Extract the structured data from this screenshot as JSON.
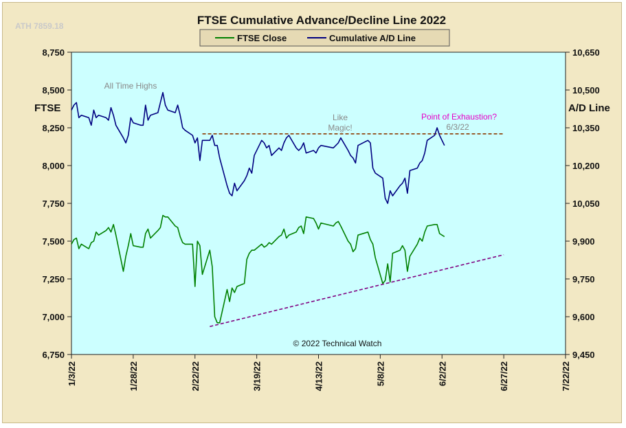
{
  "chart_data": {
    "type": "line",
    "title": "FTSE Cumulative  Advance/Decline  Line  2022",
    "corner_note": "ATH 7859.18",
    "copyright": "© 2022 Technical Watch",
    "y_left_label": "FTSE",
    "y_right_label": "A/D Line",
    "y_left_ticks": [
      "8,750",
      "8,500",
      "8,250",
      "8,000",
      "7,750",
      "7,500",
      "7,250",
      "7,000",
      "6,750"
    ],
    "y_right_ticks": [
      "10,650",
      "10,500",
      "10,350",
      "10,200",
      "10,050",
      "9,900",
      "9,750",
      "9,600",
      "9,450"
    ],
    "ylim_left": [
      6750,
      8750
    ],
    "ylim_right": [
      9450,
      10650
    ],
    "x_ticks": [
      "1/3/22",
      "1/28/22",
      "2/22/22",
      "3/19/22",
      "4/13/22",
      "5/8/22",
      "6/2/22",
      "6/27/22",
      "7/22/22"
    ],
    "xlim": [
      "2022-01-03",
      "2022-07-22"
    ],
    "legend": {
      "position": "top-center",
      "items": [
        "FTSE Close",
        "Cumulative A/D Line"
      ]
    },
    "grid": false,
    "colors": {
      "plot_bg": "#ccffff",
      "ftse": "#008000",
      "ad": "#000080",
      "resistance": "#8b3a00",
      "support": "#800080",
      "frame": "#f2e8c4",
      "pink": "#e600c8",
      "gray": "#888888"
    },
    "series": [
      {
        "name": "FTSE Close",
        "axis": "left",
        "x": [
          "2022-01-03",
          "2022-01-04",
          "2022-01-05",
          "2022-01-06",
          "2022-01-07",
          "2022-01-10",
          "2022-01-11",
          "2022-01-12",
          "2022-01-13",
          "2022-01-14",
          "2022-01-17",
          "2022-01-18",
          "2022-01-19",
          "2022-01-20",
          "2022-01-21",
          "2022-01-24",
          "2022-01-25",
          "2022-01-26",
          "2022-01-27",
          "2022-01-28",
          "2022-01-31",
          "2022-02-01",
          "2022-02-02",
          "2022-02-03",
          "2022-02-04",
          "2022-02-07",
          "2022-02-08",
          "2022-02-09",
          "2022-02-10",
          "2022-02-11",
          "2022-02-14",
          "2022-02-15",
          "2022-02-16",
          "2022-02-17",
          "2022-02-18",
          "2022-02-21",
          "2022-02-22",
          "2022-02-23",
          "2022-02-24",
          "2022-02-25",
          "2022-02-28",
          "2022-03-01",
          "2022-03-02",
          "2022-03-03",
          "2022-03-04",
          "2022-03-07",
          "2022-03-08",
          "2022-03-09",
          "2022-03-10",
          "2022-03-11",
          "2022-03-14",
          "2022-03-15",
          "2022-03-16",
          "2022-03-17",
          "2022-03-18",
          "2022-03-21",
          "2022-03-22",
          "2022-03-23",
          "2022-03-24",
          "2022-03-25",
          "2022-03-28",
          "2022-03-29",
          "2022-03-30",
          "2022-03-31",
          "2022-04-01",
          "2022-04-04",
          "2022-04-05",
          "2022-04-06",
          "2022-04-07",
          "2022-04-08",
          "2022-04-11",
          "2022-04-12",
          "2022-04-13",
          "2022-04-14",
          "2022-04-19",
          "2022-04-20",
          "2022-04-21",
          "2022-04-22",
          "2022-04-25",
          "2022-04-26",
          "2022-04-27",
          "2022-04-28",
          "2022-04-29",
          "2022-05-03",
          "2022-05-04",
          "2022-05-05",
          "2022-05-06",
          "2022-05-09",
          "2022-05-10",
          "2022-05-11",
          "2022-05-12",
          "2022-05-13",
          "2022-05-16",
          "2022-05-17",
          "2022-05-18",
          "2022-05-19",
          "2022-05-20",
          "2022-05-23",
          "2022-05-24",
          "2022-05-25",
          "2022-05-26",
          "2022-05-27",
          "2022-05-30",
          "2022-05-31",
          "2022-06-01",
          "2022-06-03"
        ],
        "values": [
          7480,
          7510,
          7520,
          7450,
          7480,
          7450,
          7490,
          7500,
          7560,
          7540,
          7570,
          7590,
          7560,
          7610,
          7540,
          7300,
          7400,
          7470,
          7550,
          7470,
          7460,
          7460,
          7550,
          7580,
          7520,
          7570,
          7590,
          7670,
          7660,
          7660,
          7600,
          7590,
          7530,
          7490,
          7480,
          7480,
          7200,
          7500,
          7470,
          7280,
          7440,
          7330,
          7000,
          6960,
          6960,
          7180,
          7100,
          7190,
          7160,
          7200,
          7220,
          7380,
          7420,
          7440,
          7440,
          7480,
          7460,
          7470,
          7490,
          7480,
          7530,
          7540,
          7580,
          7520,
          7540,
          7560,
          7590,
          7600,
          7550,
          7660,
          7650,
          7620,
          7580,
          7620,
          7600,
          7620,
          7630,
          7600,
          7500,
          7480,
          7430,
          7450,
          7540,
          7560,
          7510,
          7480,
          7390,
          7220,
          7240,
          7350,
          7230,
          7420,
          7440,
          7470,
          7440,
          7300,
          7400,
          7480,
          7520,
          7500,
          7560,
          7600,
          7610,
          7610,
          7550,
          7530
        ]
      },
      {
        "name": "Cumulative A/D Line",
        "axis": "right",
        "x": [
          "2022-01-03",
          "2022-01-04",
          "2022-01-05",
          "2022-01-06",
          "2022-01-07",
          "2022-01-10",
          "2022-01-11",
          "2022-01-12",
          "2022-01-13",
          "2022-01-14",
          "2022-01-17",
          "2022-01-18",
          "2022-01-19",
          "2022-01-20",
          "2022-01-21",
          "2022-01-24",
          "2022-01-25",
          "2022-01-26",
          "2022-01-27",
          "2022-01-28",
          "2022-01-31",
          "2022-02-01",
          "2022-02-02",
          "2022-02-03",
          "2022-02-04",
          "2022-02-07",
          "2022-02-08",
          "2022-02-09",
          "2022-02-10",
          "2022-02-11",
          "2022-02-14",
          "2022-02-15",
          "2022-02-16",
          "2022-02-17",
          "2022-02-18",
          "2022-02-21",
          "2022-02-22",
          "2022-02-23",
          "2022-02-24",
          "2022-02-25",
          "2022-02-28",
          "2022-03-01",
          "2022-03-02",
          "2022-03-03",
          "2022-03-04",
          "2022-03-07",
          "2022-03-08",
          "2022-03-09",
          "2022-03-10",
          "2022-03-11",
          "2022-03-14",
          "2022-03-15",
          "2022-03-16",
          "2022-03-17",
          "2022-03-18",
          "2022-03-21",
          "2022-03-22",
          "2022-03-23",
          "2022-03-24",
          "2022-03-25",
          "2022-03-28",
          "2022-03-29",
          "2022-03-30",
          "2022-03-31",
          "2022-04-01",
          "2022-04-04",
          "2022-04-05",
          "2022-04-06",
          "2022-04-07",
          "2022-04-08",
          "2022-04-11",
          "2022-04-12",
          "2022-04-13",
          "2022-04-14",
          "2022-04-19",
          "2022-04-20",
          "2022-04-21",
          "2022-04-22",
          "2022-04-25",
          "2022-04-26",
          "2022-04-27",
          "2022-04-28",
          "2022-04-29",
          "2022-05-03",
          "2022-05-04",
          "2022-05-05",
          "2022-05-06",
          "2022-05-09",
          "2022-05-10",
          "2022-05-11",
          "2022-05-12",
          "2022-05-13",
          "2022-05-16",
          "2022-05-17",
          "2022-05-18",
          "2022-05-19",
          "2022-05-20",
          "2022-05-23",
          "2022-05-24",
          "2022-05-25",
          "2022-05-26",
          "2022-05-27",
          "2022-05-30",
          "2022-05-31",
          "2022-06-01",
          "2022-06-03"
        ],
        "values": [
          10420,
          10440,
          10450,
          10390,
          10400,
          10390,
          10360,
          10420,
          10390,
          10400,
          10390,
          10380,
          10430,
          10400,
          10360,
          10310,
          10290,
          10320,
          10390,
          10370,
          10360,
          10360,
          10440,
          10380,
          10400,
          10410,
          10450,
          10490,
          10440,
          10420,
          10410,
          10440,
          10400,
          10350,
          10340,
          10320,
          10290,
          10310,
          10220,
          10300,
          10300,
          10320,
          10280,
          10280,
          10230,
          10120,
          10090,
          10080,
          10130,
          10100,
          10140,
          10160,
          10190,
          10170,
          10240,
          10300,
          10290,
          10270,
          10280,
          10240,
          10270,
          10260,
          10290,
          10310,
          10320,
          10270,
          10260,
          10270,
          10290,
          10250,
          10260,
          10250,
          10270,
          10280,
          10270,
          10280,
          10290,
          10310,
          10260,
          10240,
          10230,
          10210,
          10280,
          10300,
          10290,
          10190,
          10170,
          10150,
          10070,
          10050,
          10100,
          10080,
          10120,
          10130,
          10150,
          10090,
          10180,
          10190,
          10210,
          10220,
          10250,
          10300,
          10320,
          10350,
          10320,
          10280
        ]
      }
    ],
    "lines": [
      {
        "name": "resistance",
        "x": [
          "2022-02-25",
          "2022-06-27"
        ],
        "values": [
          8210,
          8210
        ],
        "axis": "left"
      },
      {
        "name": "support",
        "x": [
          "2022-02-28",
          "2022-06-27"
        ],
        "values": [
          6935,
          7410
        ],
        "axis": "left"
      }
    ],
    "annotations": [
      {
        "text": "All Time Highs",
        "color": "gray"
      },
      {
        "text": "Like",
        "color": "gray"
      },
      {
        "text": "Magic!",
        "color": "gray"
      },
      {
        "text": "Point of Exhaustion?",
        "color": "pink"
      },
      {
        "text": "6/3/22",
        "color": "gray"
      }
    ]
  }
}
